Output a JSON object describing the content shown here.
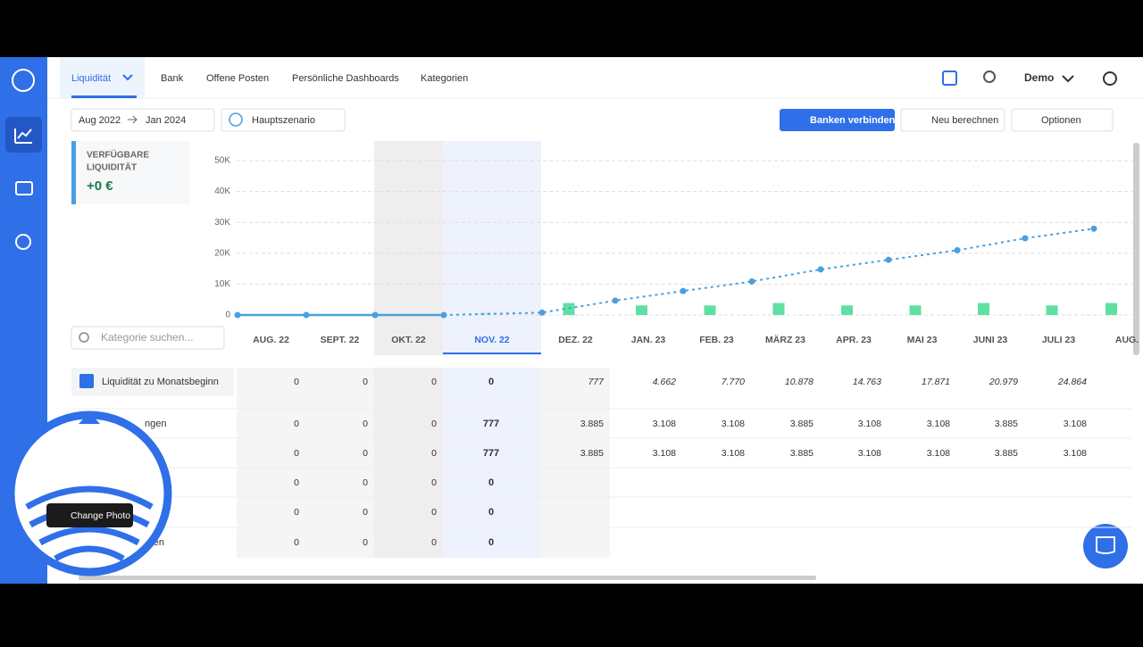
{
  "nav": {
    "tabs": [
      "Liquidität",
      "Bank",
      "Offene Posten",
      "Persönliche Dashboards",
      "Kategorien"
    ],
    "user": "Demo"
  },
  "toolbar": {
    "range_from": "Aug 2022",
    "range_to": "Jan 2024",
    "scenario": "Hauptszenario",
    "connect": "Banken verbinden",
    "recalc": "Neu berechnen",
    "options": "Optionen"
  },
  "kpi": {
    "label_1": "VERFÜGBARE",
    "label_2": "LIQUIDITÄT",
    "value": "+0 €"
  },
  "search_placeholder": "Kategorie suchen...",
  "chart": {
    "type": "line-bar",
    "months": [
      "AUG. 22",
      "SEPT. 22",
      "OKT. 22",
      "NOV. 22",
      "DEZ. 22",
      "JAN. 23",
      "FEB. 23",
      "MÄRZ 23",
      "APR. 23",
      "MAI 23",
      "JUNI 23",
      "JULI 23",
      "AUG."
    ],
    "line_values": [
      0,
      0,
      0,
      0,
      777,
      4662,
      7770,
      10878,
      14763,
      17871,
      20979,
      24864,
      27972
    ],
    "bar_values": [
      null,
      null,
      null,
      777,
      3885,
      3108,
      3108,
      3885,
      3108,
      3108,
      3885,
      3108,
      3885
    ],
    "line_color": "#4a9fe0",
    "bar_color": "#5fe0a0",
    "ylim": [
      0,
      50000
    ],
    "yticks": [
      0,
      {
        "value": 10000,
        "label": "10K"
      },
      {
        "value": 20000,
        "label": "20K"
      },
      {
        "value": 30000,
        "label": "30K"
      },
      {
        "value": 40000,
        "label": "40K"
      },
      {
        "value": 50000,
        "label": "50K"
      }
    ]
  },
  "table": {
    "rows": [
      {
        "label": "Liquidität zu Monatsbeginn",
        "cells": [
          "0",
          "0",
          "0",
          "0",
          "777",
          "4.662",
          "7.770",
          "10.878",
          "14.763",
          "17.871",
          "20.979",
          "24.864"
        ]
      },
      {
        "label": "ngen",
        "cells": [
          "0",
          "0",
          "0",
          "777",
          "3.885",
          "3.108",
          "3.108",
          "3.885",
          "3.108",
          "3.108",
          "3.885",
          "3.108"
        ]
      },
      {
        "cells": [
          "0",
          "0",
          "0",
          "777",
          "3.885",
          "3.108",
          "3.108",
          "3.885",
          "3.108",
          "3.108",
          "3.885",
          "3.108"
        ]
      },
      {
        "cells": [
          "0",
          "0",
          "0",
          "0"
        ]
      },
      {
        "cells": [
          "0",
          "0",
          "0",
          "0"
        ]
      },
      {
        "label": "eren",
        "cells": [
          "0",
          "0",
          "0",
          "0"
        ]
      }
    ]
  },
  "overlay": {
    "button": "Change Photo"
  }
}
